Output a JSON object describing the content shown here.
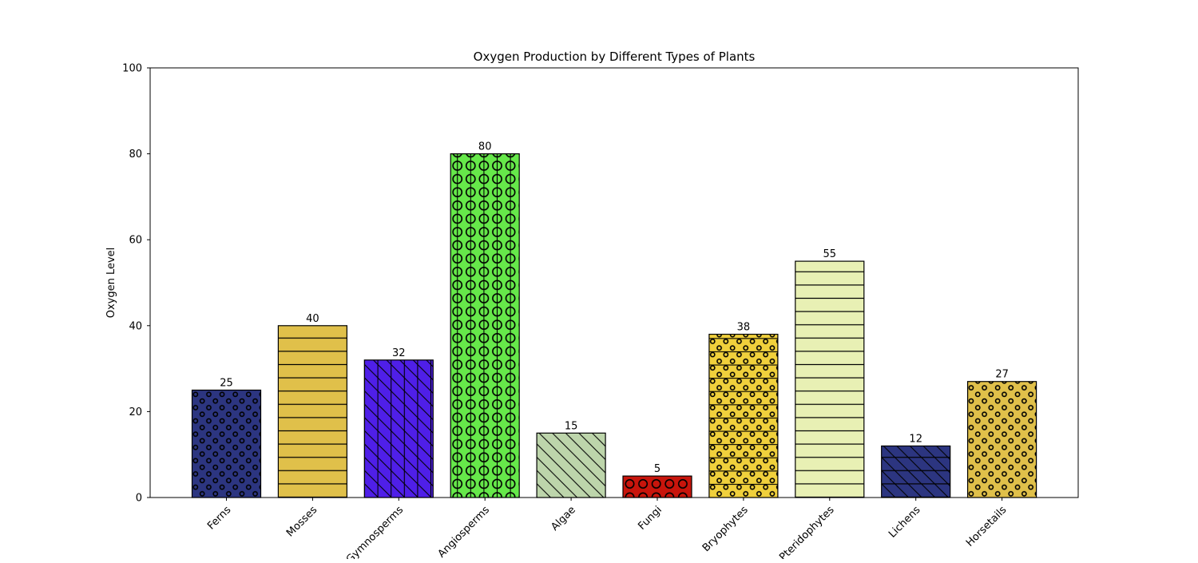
{
  "chart_data": {
    "type": "bar",
    "title": "Oxygen Production by Different Types of Plants",
    "xlabel": "",
    "ylabel": "Oxygen Level",
    "ylim": [
      0,
      100
    ],
    "yticks": [
      0,
      20,
      40,
      60,
      80,
      100
    ],
    "categories": [
      "Ferns",
      "Mosses",
      "Gymnosperms",
      "Angiosperms",
      "Algae",
      "Fungi",
      "Bryophytes",
      "Pteridophytes",
      "Lichens",
      "Horsetails"
    ],
    "values": [
      25,
      40,
      32,
      80,
      15,
      5,
      38,
      55,
      12,
      27
    ],
    "colors": [
      "#2c3580",
      "#e0c04a",
      "#4f1fe8",
      "#66e84a",
      "#bdd5ab",
      "#c8150c",
      "#f0d03c",
      "#e8f0b4",
      "#2c3580",
      "#e0c04a"
    ],
    "hatches": [
      "small-circles",
      "horizontal",
      "backslash-vertical",
      "circles-vertical",
      "backslash",
      "circles",
      "small-circles-horizontal",
      "horizontal",
      "backslash-horizontal",
      "small-circles"
    ],
    "grid": false,
    "legend": "none"
  }
}
